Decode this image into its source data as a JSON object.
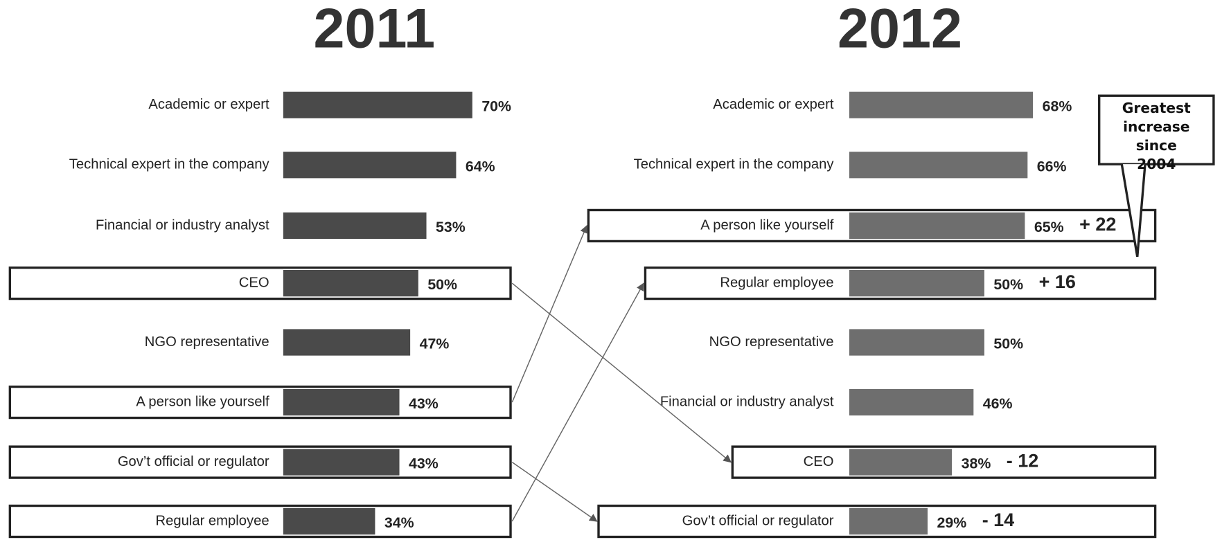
{
  "chart_data": [
    {
      "type": "bar",
      "title": "2011",
      "categories": [
        "Academic or expert",
        "Technical expert in the company",
        "Financial or industry analyst",
        "CEO",
        "NGO representative",
        "A person like yourself",
        "Gov’t official or regulator",
        "Regular employee"
      ],
      "values": [
        70,
        64,
        53,
        50,
        47,
        43,
        43,
        34
      ],
      "value_labels": [
        "70%",
        "64%",
        "53%",
        "50%",
        "47%",
        "43%",
        "43%",
        "34%"
      ],
      "color": "#4a4a4a",
      "highlighted": [
        "CEO",
        "A person like yourself",
        "Gov’t official or regulator",
        "Regular employee"
      ]
    },
    {
      "type": "bar",
      "title": "2012",
      "categories": [
        "Academic or expert",
        "Technical expert in the company",
        "A person like yourself",
        "Regular employee",
        "NGO representative",
        "Financial or industry analyst",
        "CEO",
        "Gov’t official or regulator"
      ],
      "values": [
        68,
        66,
        65,
        50,
        50,
        46,
        38,
        29
      ],
      "value_labels": [
        "68%",
        "66%",
        "65%",
        "50%",
        "50%",
        "46%",
        "38%",
        "29%"
      ],
      "color": "#6e6e6e",
      "highlighted": [
        "A person like yourself",
        "Regular employee",
        "CEO",
        "Gov’t official or regulator"
      ],
      "changes": [
        {
          "category": "A person like yourself",
          "label": "+ 22"
        },
        {
          "category": "Regular employee",
          "label": "+ 16"
        },
        {
          "category": "CEO",
          "label": "- 12"
        },
        {
          "category": "Gov’t official or regulator",
          "label": "- 14"
        }
      ],
      "callout": "Greatest increase since 2004"
    }
  ]
}
